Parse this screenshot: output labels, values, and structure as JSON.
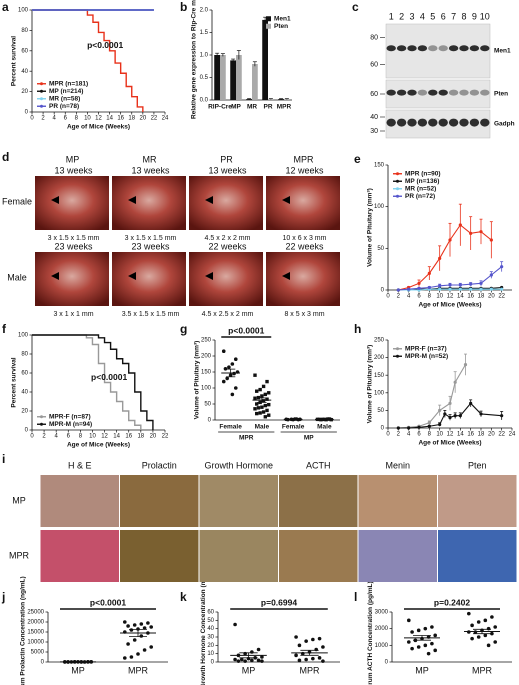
{
  "chart_data": [
    {
      "panel": "a",
      "type": "step",
      "xlabel": "Age of Mice (Weeks)",
      "ylabel": "Percent survival",
      "annotation": "p<0.0001",
      "xlim": [
        0,
        24
      ],
      "xticks": [
        0,
        2,
        4,
        6,
        8,
        10,
        12,
        14,
        16,
        18,
        20,
        22,
        24
      ],
      "ylim": [
        0,
        100
      ],
      "yticks": [
        0,
        20,
        40,
        60,
        80,
        100
      ],
      "legend": "lower left",
      "series": [
        {
          "name": "MPR (n=181)",
          "color": "#e8311a",
          "x": [
            0,
            9,
            10,
            11,
            12,
            13,
            14,
            15,
            16,
            17,
            18,
            19,
            20
          ],
          "values": [
            100,
            100,
            95,
            88,
            78,
            70,
            60,
            48,
            38,
            25,
            15,
            5,
            0
          ]
        },
        {
          "name": "MP (n=214)",
          "color": "#111111",
          "x": [
            0,
            22
          ],
          "values": [
            100,
            100
          ]
        },
        {
          "name": "MR (n=58)",
          "color": "#7fd3f0",
          "x": [
            0,
            22
          ],
          "values": [
            100,
            100
          ]
        },
        {
          "name": "PR (n=78)",
          "color": "#5555cc",
          "x": [
            0,
            22
          ],
          "values": [
            100,
            100
          ]
        }
      ]
    },
    {
      "panel": "b",
      "type": "bar",
      "ylabel": "Relative gene expression to Rip-Cre mice",
      "categories": [
        "RIP-Cre",
        "MP",
        "MR",
        "PR",
        "MPR"
      ],
      "ylim": [
        0,
        2
      ],
      "yticks": [
        {
          "value": 0,
          "label": "0.0"
        },
        0.5,
        {
          "value": 1,
          "label": "1.0"
        },
        1.5,
        {
          "value": 2,
          "label": "2.0"
        }
      ],
      "legend": "upper right",
      "series": [
        {
          "name": "Men1",
          "color": "#111111",
          "values": [
            1.0,
            0.88,
            0.02,
            1.78,
            0.02
          ],
          "errors": [
            0.04,
            0.03,
            0.01,
            0.06,
            0.01
          ]
        },
        {
          "name": "Pten",
          "color": "#aaaaaa",
          "values": [
            1.0,
            1.0,
            0.8,
            0.02,
            0.02
          ],
          "errors": [
            0.03,
            0.1,
            0.05,
            0.01,
            0.01
          ]
        }
      ]
    },
    {
      "panel": "e",
      "type": "line",
      "xlabel": "Age of Mice (Weeks)",
      "ylabel": "Volume of Pituitary (mm³)",
      "xlim": [
        0,
        24
      ],
      "xticks": [
        0,
        2,
        4,
        6,
        8,
        10,
        12,
        14,
        16,
        18,
        20,
        22
      ],
      "ylim": [
        0,
        150
      ],
      "yticks": [
        0,
        50,
        100,
        150
      ],
      "legend": "upper left",
      "series": [
        {
          "name": "MPR (n=90)",
          "color": "#e8311a",
          "x": [
            2,
            4,
            6,
            8,
            10,
            12,
            14,
            16,
            18,
            20
          ],
          "values": [
            0,
            3,
            8,
            20,
            38,
            60,
            78,
            68,
            70,
            60
          ],
          "errors": [
            0,
            1,
            4,
            8,
            15,
            20,
            25,
            20,
            15,
            22
          ]
        },
        {
          "name": "MP (n=136)",
          "color": "#111111",
          "x": [
            2,
            4,
            6,
            8,
            10,
            12,
            14,
            16,
            18,
            20,
            22
          ],
          "values": [
            0,
            0,
            1,
            1,
            2,
            2,
            2,
            2,
            2,
            2,
            3
          ]
        },
        {
          "name": "MR (n=52)",
          "color": "#7fd3f0",
          "x": [
            2,
            4,
            6,
            8,
            10,
            12,
            14,
            16,
            18,
            20,
            22
          ],
          "values": [
            0,
            0,
            0,
            1,
            1,
            1,
            1,
            1,
            1,
            1,
            1
          ]
        },
        {
          "name": "PR (n=72)",
          "color": "#5555cc",
          "x": [
            2,
            4,
            6,
            8,
            10,
            12,
            14,
            16,
            18,
            20,
            22
          ],
          "values": [
            0,
            1,
            2,
            3,
            5,
            6,
            6,
            7,
            8,
            18,
            28
          ],
          "errors": [
            0,
            0,
            1,
            1,
            2,
            2,
            2,
            2,
            3,
            4,
            6
          ]
        }
      ]
    },
    {
      "panel": "f",
      "type": "step",
      "xlabel": "Age of Mice (Weeks)",
      "ylabel": "Percent survival",
      "annotation": "p<0.0001",
      "xlim": [
        0,
        22
      ],
      "xticks": [
        0,
        2,
        4,
        6,
        8,
        10,
        12,
        14,
        16,
        18,
        20,
        22
      ],
      "ylim": [
        0,
        100
      ],
      "yticks": [
        0,
        20,
        40,
        60,
        80,
        100
      ],
      "legend": "lower left",
      "series": [
        {
          "name": "MPR-F (n=87)",
          "color": "#999999",
          "x": [
            0,
            8,
            9,
            10,
            11,
            12,
            13,
            14,
            15,
            16,
            17,
            18
          ],
          "values": [
            100,
            100,
            97,
            90,
            70,
            50,
            40,
            30,
            20,
            10,
            5,
            0
          ]
        },
        {
          "name": "MPR-M (n=94)",
          "color": "#111111",
          "x": [
            0,
            10,
            11,
            12,
            13,
            14,
            15,
            16,
            17,
            18,
            19,
            20
          ],
          "values": [
            100,
            100,
            97,
            92,
            85,
            75,
            70,
            60,
            40,
            20,
            10,
            0
          ]
        }
      ]
    },
    {
      "panel": "g",
      "type": "dotplot",
      "ylabel": "Volume of Pituitary (mm³)",
      "annotation": "p<0.0001",
      "categories": [
        "Female",
        "Male",
        "Female",
        "Male"
      ],
      "group_labels": [
        "MPR",
        "MP"
      ],
      "ylim": [
        0,
        250
      ],
      "yticks": [
        0,
        50,
        100,
        150,
        200,
        250
      ],
      "groups": [
        [
          215,
          190,
          175,
          165,
          160,
          150,
          145,
          140,
          130,
          120,
          100,
          80
        ],
        [
          140,
          120,
          105,
          95,
          90,
          85,
          80,
          75,
          70,
          68,
          65,
          60,
          55,
          50,
          48,
          45,
          40,
          38,
          35,
          30,
          25,
          22,
          20,
          15,
          10
        ],
        [
          2,
          1,
          3,
          2,
          1,
          2,
          3,
          1
        ],
        [
          2,
          3,
          1,
          2,
          2,
          1,
          3,
          2,
          1
        ]
      ],
      "mean": [
        147,
        62,
        2,
        2
      ],
      "sem": [
        12,
        7,
        1,
        1
      ]
    },
    {
      "panel": "h",
      "type": "line",
      "xlabel": "Age of Mice (Weeks)",
      "ylabel": "Volume of Pituitary (mm³)",
      "xlim": [
        0,
        24
      ],
      "xticks": [
        0,
        2,
        4,
        6,
        8,
        10,
        12,
        14,
        16,
        18,
        20,
        22,
        24
      ],
      "ylim": [
        0,
        250
      ],
      "yticks": [
        0,
        50,
        100,
        150,
        200,
        250
      ],
      "legend": "upper left",
      "series": [
        {
          "name": "MPR-F (n=37)",
          "color": "#999999",
          "x": [
            2,
            4,
            6,
            8,
            10,
            12,
            13,
            15
          ],
          "values": [
            0,
            2,
            5,
            15,
            50,
            70,
            130,
            180
          ],
          "errors": [
            0,
            1,
            2,
            5,
            15,
            20,
            30,
            30
          ]
        },
        {
          "name": "MPR-M (n=52)",
          "color": "#111111",
          "x": [
            2,
            4,
            6,
            8,
            10,
            11,
            12,
            13,
            14,
            16,
            18,
            22
          ],
          "values": [
            0,
            0,
            2,
            5,
            10,
            40,
            30,
            35,
            35,
            70,
            40,
            35
          ],
          "errors": [
            0,
            0,
            1,
            2,
            5,
            10,
            8,
            8,
            8,
            10,
            8,
            12
          ]
        }
      ]
    },
    {
      "panel": "j",
      "type": "dotplot",
      "ylabel": "Serum Prolactin Concentration (ng/mL)",
      "annotation": "p<0.0001",
      "categories": [
        "MP",
        "MPR"
      ],
      "ylim": [
        0,
        25000
      ],
      "yticks": [
        0,
        5000,
        10000,
        15000,
        20000,
        25000
      ],
      "groups": [
        [
          50,
          80,
          40,
          60,
          30,
          70,
          20,
          90,
          50,
          40,
          60,
          30,
          80,
          50,
          40
        ],
        [
          20000,
          19500,
          19000,
          18500,
          18000,
          17500,
          17000,
          16500,
          16000,
          15000,
          14500,
          13000,
          11000,
          9000,
          7500,
          6000,
          4000,
          2500,
          2000
        ]
      ],
      "mean": [
        50,
        14500
      ],
      "sem": [
        10,
        1800
      ]
    },
    {
      "panel": "k",
      "type": "dotplot",
      "ylabel": "Serum Growth Hormone Concentration (ng/mL)",
      "annotation": "p=0.6994",
      "categories": [
        "MP",
        "MPR"
      ],
      "ylim": [
        0,
        60
      ],
      "yticks": [
        0,
        10,
        20,
        30,
        40,
        50,
        60
      ],
      "groups": [
        [
          45,
          15,
          12,
          10,
          8,
          6,
          5,
          4,
          3,
          3,
          2,
          2,
          1,
          1,
          1
        ],
        [
          30,
          28,
          27,
          25,
          20,
          18,
          15,
          12,
          10,
          8,
          5,
          4,
          3,
          2,
          1
        ]
      ],
      "mean": [
        8,
        11
      ],
      "sem": [
        3,
        3
      ]
    },
    {
      "panel": "l",
      "type": "dotplot",
      "ylabel": "Serum ACTH Concentration (pg/mL)",
      "annotation": "p=0.2402",
      "categories": [
        "MP",
        "MPR"
      ],
      "ylim": [
        0,
        3000
      ],
      "yticks": [
        0,
        1000,
        2000,
        3000
      ],
      "groups": [
        [
          2500,
          2100,
          2000,
          1900,
          1800,
          1600,
          1500,
          1400,
          1300,
          1200,
          1100,
          1000,
          900,
          800,
          700,
          500
        ],
        [
          2900,
          2700,
          2500,
          2400,
          2200,
          2100,
          2000,
          1900,
          1800,
          1800,
          1700,
          1600,
          1500,
          1400,
          1200,
          1000
        ]
      ],
      "mean": [
        1450,
        1830
      ],
      "sem": [
        140,
        130
      ]
    }
  ],
  "blot": {
    "panel": "c",
    "lanes": [
      "1",
      "2",
      "3",
      "4",
      "5",
      "6",
      "7",
      "8",
      "9",
      "10"
    ],
    "rows": [
      {
        "label": "Men1",
        "markers": [
          "80",
          "60"
        ]
      },
      {
        "label": "Pten",
        "markers": [
          "60"
        ]
      },
      {
        "label": "Gadph",
        "markers": [
          "40",
          "30"
        ]
      }
    ]
  },
  "photos": {
    "panel": "d",
    "columns": [
      "MP",
      "MR",
      "PR",
      "MPR"
    ],
    "rows": [
      {
        "label": "Female",
        "ages": [
          "13 weeks",
          "13 weeks",
          "13 weeks",
          "12 weeks"
        ],
        "sizes": [
          "3 x 1.5 x 1.5 mm",
          "3 x 1.5 x 1.5 mm",
          "4.5 x 2 x 2 mm",
          "10 x 6 x 3 mm"
        ]
      },
      {
        "label": "Male",
        "ages": [
          "23 weeks",
          "23 weeks",
          "22 weeks",
          "22 weeks"
        ],
        "sizes": [
          "3 x 1 x 1 mm",
          "3.5 x 1.5 x 1.5 mm",
          "4.5 x 2.5 x 2 mm",
          "8 x 5 x 3 mm"
        ]
      }
    ]
  },
  "histology": {
    "panel": "i",
    "columns": [
      "H & E",
      "Prolactin",
      "Growth Hormone",
      "ACTH",
      "Menin",
      "Pten"
    ],
    "rows": [
      "MP",
      "MPR"
    ]
  }
}
